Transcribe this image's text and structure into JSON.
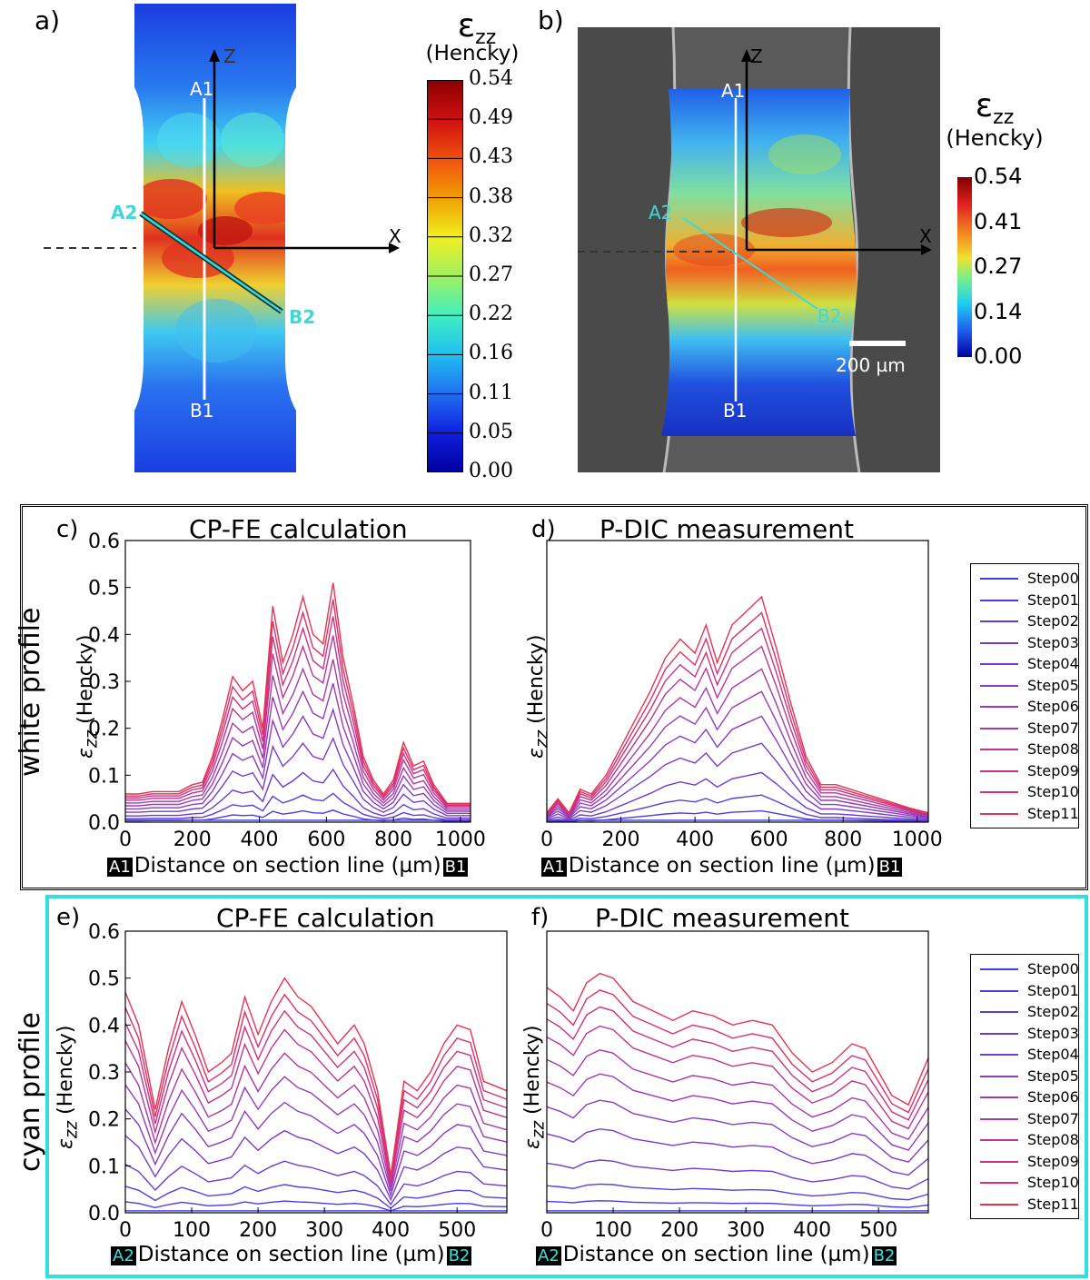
{
  "panel_a": {
    "letter": "a)",
    "label_a1": "A1",
    "label_b1": "B1",
    "label_a2": "A2",
    "label_b2": "B2",
    "axis_z": "Z",
    "axis_x": "X",
    "colorbar_symbol": "ε",
    "colorbar_sub": "zz",
    "colorbar_unit": "(Hencky)",
    "colorbar_ticks": [
      "0.54",
      "0.49",
      "0.43",
      "0.38",
      "0.32",
      "0.27",
      "0.22",
      "0.16",
      "0.11",
      "0.05",
      "0.00"
    ]
  },
  "panel_b": {
    "letter": "b)",
    "label_a1": "A1",
    "label_b1": "B1",
    "label_a2": "A2",
    "label_b2": "B2",
    "axis_z": "Z",
    "axis_x": "X",
    "scalebar": "200 µm",
    "colorbar_symbol": "ε",
    "colorbar_sub": "zz",
    "colorbar_unit": "(Hencky)",
    "colorbar_ticks": [
      "0.54",
      "0.41",
      "0.27",
      "0.14",
      "0.00"
    ]
  },
  "row_white": {
    "title": "white profile",
    "border_color": "#000000"
  },
  "row_cyan": {
    "title": "cyan profile",
    "border_color": "#33e0e0"
  },
  "legend_labels": [
    "Step00",
    "Step01",
    "Step02",
    "Step03",
    "Step04",
    "Step05",
    "Step06",
    "Step07",
    "Step08",
    "Step09",
    "Step10",
    "Step11"
  ],
  "step_colors": [
    "#3b3bf0",
    "#4a3be8",
    "#5a3ce0",
    "#6a3cd7",
    "#7a3ccd",
    "#8a3bc3",
    "#9a3ab8",
    "#aa38aa",
    "#bb3596",
    "#cc3280",
    "#dd3068",
    "#ec3050"
  ],
  "plots": {
    "c": {
      "letter": "c)",
      "title": "CP-FE calculation",
      "tag_start": "A1",
      "tag_end": "B1",
      "xlabel": "Distance on section line (µm)",
      "ylabel": "(Hencky)",
      "ysym": "ε",
      "ysub": "zz"
    },
    "d": {
      "letter": "d)",
      "title": "P-DIC measurement",
      "tag_start": "A1",
      "tag_end": "B1",
      "xlabel": "Distance on section line (µm)",
      "ylabel": "(Hencky)",
      "ysym": "ε",
      "ysub": "zz"
    },
    "e": {
      "letter": "e)",
      "title": "CP-FE calculation",
      "tag_start": "A2",
      "tag_end": "B2",
      "xlabel": "Distance on section line (µm)",
      "ylabel": "(Hencky)",
      "ysym": "ε",
      "ysub": "zz"
    },
    "f": {
      "letter": "f)",
      "title": "P-DIC measurement",
      "tag_start": "A2",
      "tag_end": "B2",
      "xlabel": "Distance on section line (µm)",
      "ylabel": "(Hencky)",
      "ysym": "ε",
      "ysub": "zz"
    }
  },
  "chart_data": [
    {
      "id": "c",
      "type": "line",
      "title": "CP-FE calculation",
      "xlabel": "Distance on section line (µm)",
      "ylabel": "εzz (Hencky)",
      "xlim": [
        0,
        1030
      ],
      "ylim": [
        0,
        0.6
      ],
      "xticks": [
        0,
        200,
        400,
        600,
        800,
        1000
      ],
      "yticks": [
        0.0,
        0.1,
        0.2,
        0.3,
        0.4,
        0.5,
        0.6
      ],
      "ytick_labels": [
        "0.0",
        "0.1",
        "0.2",
        "0.3",
        "0.4",
        "0.5",
        "0.6"
      ],
      "x": [
        0,
        40,
        80,
        120,
        160,
        200,
        230,
        260,
        290,
        320,
        350,
        380,
        410,
        440,
        470,
        500,
        530,
        560,
        590,
        620,
        650,
        680,
        710,
        740,
        770,
        800,
        830,
        860,
        890,
        920,
        960,
        1000,
        1030
      ],
      "final_profile": [
        0.06,
        0.06,
        0.065,
        0.065,
        0.065,
        0.08,
        0.085,
        0.14,
        0.22,
        0.31,
        0.28,
        0.3,
        0.2,
        0.46,
        0.34,
        0.4,
        0.48,
        0.4,
        0.38,
        0.51,
        0.35,
        0.25,
        0.14,
        0.09,
        0.06,
        0.09,
        0.17,
        0.12,
        0.13,
        0.08,
        0.04,
        0.04,
        0.04
      ],
      "step_fractions": [
        0.0,
        0.05,
        0.12,
        0.22,
        0.35,
        0.47,
        0.58,
        0.68,
        0.78,
        0.86,
        0.93,
        1.0
      ],
      "series_labels": [
        "Step00",
        "Step01",
        "Step02",
        "Step03",
        "Step04",
        "Step05",
        "Step06",
        "Step07",
        "Step08",
        "Step09",
        "Step10",
        "Step11"
      ],
      "legend": "right"
    },
    {
      "id": "d",
      "type": "line",
      "title": "P-DIC measurement",
      "xlabel": "Distance on section line (µm)",
      "ylabel": "εzz (Hencky)",
      "xlim": [
        0,
        1030
      ],
      "ylim": [
        0,
        0.6
      ],
      "xticks": [
        0,
        200,
        400,
        600,
        800,
        1000
      ],
      "yticks": [],
      "ytick_labels": [],
      "x": [
        0,
        30,
        60,
        90,
        120,
        160,
        200,
        240,
        280,
        320,
        360,
        400,
        430,
        460,
        500,
        540,
        580,
        620,
        660,
        700,
        740,
        780,
        820,
        860,
        900,
        940,
        980,
        1030
      ],
      "final_profile": [
        0.02,
        0.05,
        0.02,
        0.07,
        0.06,
        0.1,
        0.16,
        0.22,
        0.28,
        0.35,
        0.39,
        0.36,
        0.42,
        0.34,
        0.42,
        0.45,
        0.48,
        0.37,
        0.25,
        0.14,
        0.08,
        0.08,
        0.07,
        0.06,
        0.05,
        0.04,
        0.03,
        0.02
      ],
      "step_fractions": [
        0.0,
        0.05,
        0.12,
        0.22,
        0.35,
        0.47,
        0.58,
        0.68,
        0.78,
        0.86,
        0.93,
        1.0
      ],
      "series_labels": [
        "Step00",
        "Step01",
        "Step02",
        "Step03",
        "Step04",
        "Step05",
        "Step06",
        "Step07",
        "Step08",
        "Step09",
        "Step10",
        "Step11"
      ],
      "legend": "right"
    },
    {
      "id": "e",
      "type": "line",
      "title": "CP-FE calculation",
      "xlabel": "Distance on section line (µm)",
      "ylabel": "εzz (Hencky)",
      "xlim": [
        0,
        575
      ],
      "ylim": [
        0,
        0.6
      ],
      "xticks": [
        0,
        100,
        200,
        300,
        400,
        500
      ],
      "yticks": [
        0.0,
        0.1,
        0.2,
        0.3,
        0.4,
        0.5,
        0.6
      ],
      "ytick_labels": [
        "0.0",
        "0.1",
        "0.2",
        "0.3",
        "0.4",
        "0.5",
        "0.6"
      ],
      "x": [
        0,
        20,
        45,
        65,
        85,
        105,
        125,
        145,
        160,
        180,
        200,
        220,
        240,
        260,
        280,
        300,
        320,
        345,
        360,
        380,
        400,
        420,
        440,
        460,
        480,
        500,
        520,
        540,
        575
      ],
      "final_profile": [
        0.47,
        0.4,
        0.22,
        0.35,
        0.45,
        0.38,
        0.3,
        0.32,
        0.34,
        0.46,
        0.38,
        0.45,
        0.5,
        0.46,
        0.44,
        0.4,
        0.36,
        0.4,
        0.36,
        0.26,
        0.08,
        0.28,
        0.26,
        0.3,
        0.36,
        0.4,
        0.39,
        0.28,
        0.26
      ],
      "step_fractions": [
        0.0,
        0.05,
        0.12,
        0.22,
        0.35,
        0.47,
        0.58,
        0.68,
        0.78,
        0.86,
        0.93,
        1.0
      ],
      "series_labels": [
        "Step00",
        "Step01",
        "Step02",
        "Step03",
        "Step04",
        "Step05",
        "Step06",
        "Step07",
        "Step08",
        "Step09",
        "Step10",
        "Step11"
      ],
      "legend": "right"
    },
    {
      "id": "f",
      "type": "line",
      "title": "P-DIC measurement",
      "xlabel": "Distance on section line (µm)",
      "ylabel": "εzz (Hencky)",
      "xlim": [
        0,
        575
      ],
      "ylim": [
        0,
        0.6
      ],
      "xticks": [
        0,
        100,
        200,
        300,
        400,
        500
      ],
      "yticks": [],
      "ytick_labels": [],
      "x": [
        0,
        20,
        40,
        60,
        80,
        100,
        130,
        160,
        190,
        220,
        250,
        280,
        310,
        340,
        370,
        400,
        430,
        460,
        480,
        500,
        520,
        545,
        575
      ],
      "final_profile": [
        0.48,
        0.46,
        0.43,
        0.49,
        0.51,
        0.5,
        0.45,
        0.43,
        0.41,
        0.43,
        0.42,
        0.4,
        0.41,
        0.4,
        0.34,
        0.3,
        0.32,
        0.36,
        0.35,
        0.3,
        0.25,
        0.23,
        0.33
      ],
      "step_fractions": [
        0.0,
        0.05,
        0.12,
        0.22,
        0.35,
        0.47,
        0.58,
        0.68,
        0.78,
        0.86,
        0.93,
        1.0
      ],
      "series_labels": [
        "Step00",
        "Step01",
        "Step02",
        "Step03",
        "Step04",
        "Step05",
        "Step06",
        "Step07",
        "Step08",
        "Step09",
        "Step10",
        "Step11"
      ],
      "legend": "right"
    }
  ]
}
